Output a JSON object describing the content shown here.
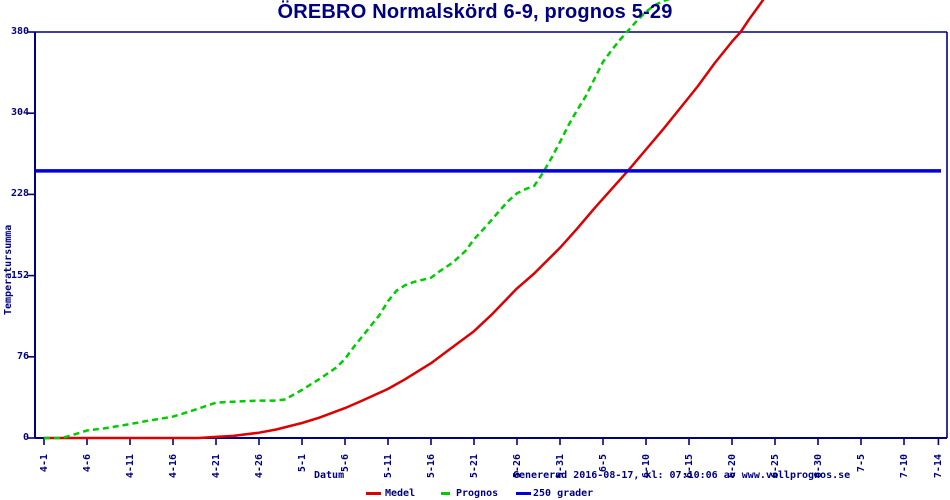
{
  "title": "ÖREBRO Normalskörd 6-9, prognos 5-29",
  "footer_text": "Genererad 2016-08-17, kl: 07:10:06 av www.vallprognos.se",
  "colors": {
    "axis": "#000080",
    "title": "#000080",
    "medel": "#dd0000",
    "prognos": "#00cc00",
    "ref_line": "#0000dd",
    "background": "#ffffff"
  },
  "legend": {
    "items": [
      {
        "label": "Medel",
        "color": "#dd0000",
        "style": "solid"
      },
      {
        "label": "Prognos",
        "color": "#00cc00",
        "style": "dashed"
      },
      {
        "label": "250 grader",
        "color": "#0000dd",
        "style": "solid"
      }
    ]
  },
  "chart_data": {
    "type": "line",
    "title": "ÖREBRO Normalskörd 6-9, prognos 5-29",
    "xlabel": "Datum",
    "ylabel": "Temperatursumma",
    "ylim": [
      0,
      380
    ],
    "yticks": [
      0,
      76,
      152,
      228,
      304,
      380
    ],
    "xticks": [
      "4-1",
      "4-6",
      "4-11",
      "4-16",
      "4-21",
      "4-26",
      "5-1",
      "5-6",
      "5-11",
      "5-16",
      "5-21",
      "5-26",
      "5-31",
      "6-5",
      "6-10",
      "6-15",
      "6-20",
      "6-25",
      "6-30",
      "7-5",
      "7-10",
      "7-14"
    ],
    "xtick_days": [
      0,
      5,
      10,
      15,
      20,
      25,
      30,
      35,
      40,
      45,
      50,
      55,
      60,
      65,
      70,
      75,
      80,
      85,
      90,
      95,
      100,
      104
    ],
    "grid": false,
    "legend_position": "bottom",
    "ref_line": {
      "label": "250 grader",
      "value": 250
    },
    "series": [
      {
        "name": "Medel",
        "color": "#dd0000",
        "style": "solid",
        "x_unit": "days from 4-1",
        "points": [
          [
            0,
            0
          ],
          [
            18,
            0
          ],
          [
            20,
            1
          ],
          [
            22,
            2
          ],
          [
            25,
            5
          ],
          [
            27,
            8
          ],
          [
            30,
            14
          ],
          [
            32,
            19
          ],
          [
            35,
            28
          ],
          [
            37,
            35
          ],
          [
            40,
            46
          ],
          [
            42,
            55
          ],
          [
            45,
            70
          ],
          [
            47,
            82
          ],
          [
            50,
            100
          ],
          [
            52,
            115
          ],
          [
            55,
            140
          ],
          [
            57,
            154
          ],
          [
            58,
            162
          ],
          [
            60,
            178
          ],
          [
            62,
            196
          ],
          [
            64,
            215
          ],
          [
            66,
            233
          ],
          [
            68,
            251
          ],
          [
            70,
            270
          ],
          [
            72,
            289
          ],
          [
            74,
            309
          ],
          [
            76,
            329
          ],
          [
            78,
            351
          ],
          [
            80,
            371
          ],
          [
            81,
            380
          ],
          [
            82,
            392
          ],
          [
            83,
            403
          ],
          [
            83.7,
            411
          ]
        ]
      },
      {
        "name": "Prognos",
        "color": "#00cc00",
        "style": "dashed",
        "x_unit": "days from 4-1",
        "points": [
          [
            0,
            0
          ],
          [
            2,
            0
          ],
          [
            3,
            2
          ],
          [
            5,
            7
          ],
          [
            7,
            9
          ],
          [
            10,
            13
          ],
          [
            12,
            16
          ],
          [
            15,
            20
          ],
          [
            17,
            25
          ],
          [
            20,
            33
          ],
          [
            22,
            34
          ],
          [
            25,
            35
          ],
          [
            27,
            35
          ],
          [
            28,
            36
          ],
          [
            30,
            45
          ],
          [
            32,
            55
          ],
          [
            34,
            66
          ],
          [
            35,
            74
          ],
          [
            36,
            85
          ],
          [
            37.5,
            100
          ],
          [
            39,
            115
          ],
          [
            40,
            128
          ],
          [
            41,
            138
          ],
          [
            42,
            143
          ],
          [
            43,
            146
          ],
          [
            45,
            150
          ],
          [
            46,
            156
          ],
          [
            47.5,
            164
          ],
          [
            49,
            175
          ],
          [
            50,
            186
          ],
          [
            51.5,
            199
          ],
          [
            53,
            213
          ],
          [
            54,
            222
          ],
          [
            55,
            229
          ],
          [
            56,
            233
          ],
          [
            57,
            236
          ],
          [
            58,
            248
          ],
          [
            59,
            262
          ],
          [
            60,
            277
          ],
          [
            61,
            293
          ],
          [
            62,
            307
          ],
          [
            63,
            320
          ],
          [
            64,
            336
          ],
          [
            65,
            352
          ],
          [
            66,
            363
          ],
          [
            67,
            373
          ],
          [
            68,
            382
          ],
          [
            69,
            391
          ],
          [
            70,
            399
          ],
          [
            71,
            405
          ],
          [
            72,
            409
          ],
          [
            72.8,
            411
          ]
        ]
      }
    ]
  }
}
